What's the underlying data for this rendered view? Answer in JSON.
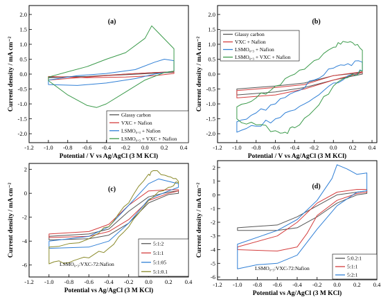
{
  "colors": {
    "black": "#555555",
    "red": "#d43d3d",
    "blue": "#2f7fd6",
    "green": "#3a9a4a",
    "olive": "#8a8a2a",
    "cyan": "#22b3c9",
    "teal": "#3aa88e"
  },
  "chart_data": [
    {
      "label": "(a)",
      "type": "line",
      "xlabel": "Potential / V vs Ag/AgCl (3 M KCl)",
      "ylabel": "Current density / mA cm⁻²",
      "xlim": [
        -1.2,
        0.45
      ],
      "ylim": [
        -2.3,
        2.3
      ],
      "xticks": [
        "-1.2",
        "-1.0",
        "-0.8",
        "-0.6",
        "-0.4",
        "-0.2",
        "0.0",
        "0.2",
        "0.4"
      ],
      "yticks": [
        "-2.0",
        "-1.5",
        "-1.0",
        "-0.5",
        "0.0",
        "0.5",
        "1.0",
        "1.5",
        "2.0"
      ],
      "legend_position": "bottom-right",
      "series": [
        {
          "name": "Glassy carbon",
          "color": "#555555",
          "upper": [
            [
              -1.0,
              -0.12
            ],
            [
              -0.6,
              -0.08
            ],
            [
              -0.2,
              0.0
            ],
            [
              0.1,
              0.05
            ],
            [
              0.3,
              0.08
            ]
          ],
          "lower": [
            [
              -1.0,
              -0.1
            ],
            [
              -0.6,
              -0.08
            ],
            [
              -0.2,
              -0.02
            ],
            [
              0.1,
              0.03
            ],
            [
              0.3,
              0.06
            ]
          ]
        },
        {
          "name": "VXC + Nafion",
          "color": "#d43d3d",
          "upper": [
            [
              -1.0,
              -0.2
            ],
            [
              -0.6,
              -0.1
            ],
            [
              -0.2,
              0.0
            ],
            [
              0.1,
              0.05
            ],
            [
              0.3,
              0.08
            ]
          ],
          "lower": [
            [
              -1.0,
              -0.08
            ],
            [
              -0.6,
              -0.12
            ],
            [
              -0.2,
              -0.1
            ],
            [
              0.1,
              -0.05
            ],
            [
              0.3,
              0.02
            ]
          ]
        },
        {
          "name": "LSMO₀.₃ + Nafion",
          "color": "#2f7fd6",
          "upper": [
            [
              -1.0,
              -0.2
            ],
            [
              -0.7,
              -0.05
            ],
            [
              -0.4,
              0.02
            ],
            [
              -0.1,
              0.15
            ],
            [
              0.1,
              0.4
            ],
            [
              0.2,
              0.5
            ],
            [
              0.3,
              0.45
            ]
          ],
          "lower": [
            [
              -1.0,
              -0.35
            ],
            [
              -0.7,
              -0.38
            ],
            [
              -0.4,
              -0.3
            ],
            [
              -0.1,
              -0.15
            ],
            [
              0.1,
              0.0
            ],
            [
              0.2,
              0.05
            ],
            [
              0.3,
              0.1
            ]
          ]
        },
        {
          "name": "LSMO₀.₃ + VXC + Nafion",
          "color": "#3a9a4a",
          "upper": [
            [
              -1.0,
              -0.1
            ],
            [
              -0.8,
              0.08
            ],
            [
              -0.6,
              0.25
            ],
            [
              -0.4,
              0.5
            ],
            [
              -0.2,
              0.72
            ],
            [
              0.0,
              1.2
            ],
            [
              0.07,
              1.62
            ],
            [
              0.15,
              1.35
            ],
            [
              0.3,
              0.85
            ]
          ],
          "lower": [
            [
              -1.0,
              -0.22
            ],
            [
              -0.8,
              -0.7
            ],
            [
              -0.6,
              -1.05
            ],
            [
              -0.5,
              -1.12
            ],
            [
              -0.4,
              -1.0
            ],
            [
              -0.2,
              -0.6
            ],
            [
              0.0,
              -0.2
            ],
            [
              0.2,
              0.05
            ],
            [
              0.3,
              0.1
            ]
          ]
        }
      ]
    },
    {
      "label": "(b)",
      "type": "line",
      "xlabel": "Potential / V vs Ag/AgCl (3 M KCl)",
      "ylabel": "Current density / mA cm⁻²",
      "xlim": [
        -1.2,
        0.45
      ],
      "ylim": [
        -2.3,
        2.3
      ],
      "xticks": [
        "-1.2",
        "-1.0",
        "-0.8",
        "-0.6",
        "-0.4",
        "-0.2",
        "0.0",
        "0.2",
        "0.4"
      ],
      "yticks": [
        "-2.0",
        "-1.5",
        "-1.0",
        "-0.5",
        "0.0",
        "0.5",
        "1.0",
        "1.5",
        "2.0"
      ],
      "legend_position": "top-left",
      "series": [
        {
          "name": "Glassy carbon",
          "color": "#555555",
          "upper": [
            [
              -1.0,
              -0.5
            ],
            [
              -0.6,
              -0.4
            ],
            [
              -0.3,
              -0.3
            ],
            [
              0.0,
              -0.05
            ],
            [
              0.3,
              0.05
            ]
          ],
          "lower": [
            [
              -1.0,
              -0.7
            ],
            [
              -0.6,
              -0.6
            ],
            [
              -0.3,
              -0.45
            ],
            [
              0.0,
              -0.2
            ],
            [
              0.3,
              0.0
            ]
          ]
        },
        {
          "name": "VXC + Nafion",
          "color": "#d43d3d",
          "upper": [
            [
              -1.0,
              -0.55
            ],
            [
              -0.6,
              -0.45
            ],
            [
              -0.3,
              -0.35
            ],
            [
              0.0,
              -0.05
            ],
            [
              0.3,
              0.08
            ]
          ],
          "lower": [
            [
              -1.0,
              -0.8
            ],
            [
              -0.6,
              -0.7
            ],
            [
              -0.3,
              -0.5
            ],
            [
              0.0,
              -0.2
            ],
            [
              0.3,
              0.05
            ]
          ]
        },
        {
          "name": "LSMO₀.₃ + Nafion",
          "color": "#2f7fd6",
          "upper": [
            [
              -1.0,
              -1.6
            ],
            [
              -0.8,
              -1.3
            ],
            [
              -0.6,
              -1.0
            ],
            [
              -0.4,
              -0.6
            ],
            [
              -0.2,
              -0.2
            ],
            [
              0.0,
              0.2
            ],
            [
              0.15,
              0.35
            ],
            [
              0.3,
              0.4
            ]
          ],
          "lower": [
            [
              -1.0,
              -1.95
            ],
            [
              -0.8,
              -1.75
            ],
            [
              -0.6,
              -1.5
            ],
            [
              -0.4,
              -1.2
            ],
            [
              -0.2,
              -0.8
            ],
            [
              0.0,
              -0.3
            ],
            [
              0.2,
              0.0
            ],
            [
              0.3,
              0.1
            ]
          ]
        },
        {
          "name": "LSMO₀.₃ + VXC + Nafion",
          "color": "#3a9a4a",
          "upper": [
            [
              -1.0,
              -1.1
            ],
            [
              -0.8,
              -0.8
            ],
            [
              -0.6,
              -0.4
            ],
            [
              -0.4,
              0.0
            ],
            [
              -0.2,
              0.45
            ],
            [
              0.0,
              0.9
            ],
            [
              0.1,
              1.1
            ],
            [
              0.2,
              1.05
            ],
            [
              0.3,
              0.8
            ]
          ],
          "lower": [
            [
              -1.0,
              -1.5
            ],
            [
              -0.8,
              -1.7
            ],
            [
              -0.6,
              -1.9
            ],
            [
              -0.5,
              -1.95
            ],
            [
              -0.4,
              -1.8
            ],
            [
              -0.2,
              -1.2
            ],
            [
              0.0,
              -0.4
            ],
            [
              0.2,
              0.0
            ],
            [
              0.3,
              0.1
            ]
          ]
        }
      ]
    },
    {
      "label": "(c)",
      "type": "line",
      "xlabel": "Potential vs Ag/AgCl (3 M KCl)",
      "ylabel": "Current density / mA cm⁻²",
      "xlim": [
        -1.2,
        0.4
      ],
      "ylim": [
        -7,
        2.5
      ],
      "xticks": [
        "-1.2",
        "-1.0",
        "-0.8",
        "-0.6",
        "-0.4",
        "-0.2",
        "0.0",
        "0.2",
        "0.4"
      ],
      "yticks": [
        "-6",
        "-4",
        "-2",
        "0",
        "2"
      ],
      "legend_position": "bottom-right",
      "annotation": "LSMO₀.₃:VXC-72:Nafion",
      "series": [
        {
          "name": "5:1:2",
          "color": "#555555",
          "upper": [
            [
              -1.0,
              -3.6
            ],
            [
              -0.6,
              -3.4
            ],
            [
              -0.4,
              -3.0
            ],
            [
              -0.2,
              -1.5
            ],
            [
              0.0,
              -0.3
            ],
            [
              0.2,
              0.1
            ],
            [
              0.3,
              0.2
            ]
          ],
          "lower": [
            [
              -1.0,
              -3.9
            ],
            [
              -0.6,
              -3.8
            ],
            [
              -0.4,
              -3.5
            ],
            [
              -0.2,
              -2.5
            ],
            [
              0.0,
              -0.8
            ],
            [
              0.2,
              -0.1
            ],
            [
              0.3,
              0.0
            ]
          ]
        },
        {
          "name": "5:1:1",
          "color": "#d43d3d",
          "upper": [
            [
              -1.0,
              -3.4
            ],
            [
              -0.6,
              -3.2
            ],
            [
              -0.4,
              -2.6
            ],
            [
              -0.2,
              -1.0
            ],
            [
              0.0,
              0.2
            ],
            [
              0.2,
              0.3
            ],
            [
              0.3,
              0.3
            ]
          ],
          "lower": [
            [
              -1.0,
              -3.7
            ],
            [
              -0.6,
              -3.6
            ],
            [
              -0.4,
              -3.2
            ],
            [
              -0.2,
              -2.2
            ],
            [
              0.0,
              -0.6
            ],
            [
              0.2,
              0.0
            ],
            [
              0.3,
              0.2
            ]
          ]
        },
        {
          "name": "5:1:05",
          "color": "#2f7fd6",
          "upper": [
            [
              -1.0,
              -4.0
            ],
            [
              -0.6,
              -3.6
            ],
            [
              -0.4,
              -2.8
            ],
            [
              -0.2,
              -1.0
            ],
            [
              0.0,
              0.8
            ],
            [
              0.1,
              1.2
            ],
            [
              0.2,
              1.0
            ],
            [
              0.3,
              0.8
            ]
          ],
          "lower": [
            [
              -1.0,
              -4.6
            ],
            [
              -0.6,
              -4.5
            ],
            [
              -0.4,
              -4.0
            ],
            [
              -0.2,
              -2.5
            ],
            [
              0.0,
              -0.5
            ],
            [
              0.2,
              0.2
            ],
            [
              0.3,
              0.5
            ]
          ]
        },
        {
          "name": "5:1:0.1",
          "color": "#8a8a2a",
          "upper": [
            [
              -1.0,
              -4.5
            ],
            [
              -0.6,
              -3.8
            ],
            [
              -0.4,
              -2.8
            ],
            [
              -0.2,
              -0.8
            ],
            [
              0.0,
              1.6
            ],
            [
              0.05,
              1.9
            ],
            [
              0.2,
              1.4
            ],
            [
              0.3,
              1.0
            ]
          ],
          "lower": [
            [
              -1.0,
              -5.9
            ],
            [
              -0.8,
              -5.8
            ],
            [
              -0.6,
              -5.4
            ],
            [
              -0.4,
              -4.6
            ],
            [
              -0.2,
              -2.8
            ],
            [
              0.0,
              -0.6
            ],
            [
              0.2,
              0.5
            ],
            [
              0.3,
              0.9
            ]
          ]
        }
      ]
    },
    {
      "label": "(d)",
      "type": "line",
      "xlabel": "Potential vs Ag/AgCl (3 M KCl)",
      "ylabel": "Current density / mA cm⁻²",
      "xlim": [
        -1.2,
        0.4
      ],
      "ylim": [
        -6.2,
        2.5
      ],
      "xticks": [
        "-1.2",
        "-1.0",
        "-0.8",
        "-0.6",
        "-0.4",
        "-0.2",
        "0.0",
        "0.2",
        "0.4"
      ],
      "yticks": [
        "-6",
        "-5",
        "-4",
        "-3",
        "-2",
        "-1",
        "0",
        "1",
        "2"
      ],
      "legend_position": "bottom-right",
      "annotation": "LSMO₀.₃:VXC-72:Nafion",
      "series": [
        {
          "name": "5:0.2:1",
          "color": "#555555",
          "upper": [
            [
              -1.0,
              -2.4
            ],
            [
              -0.6,
              -2.2
            ],
            [
              -0.4,
              -1.6
            ],
            [
              -0.2,
              -0.8
            ],
            [
              0.0,
              0.0
            ],
            [
              0.2,
              0.2
            ],
            [
              0.3,
              0.3
            ]
          ],
          "lower": [
            [
              -1.0,
              -2.6
            ],
            [
              -0.6,
              -2.6
            ],
            [
              -0.4,
              -2.4
            ],
            [
              -0.2,
              -1.6
            ],
            [
              0.0,
              -0.6
            ],
            [
              0.2,
              0.0
            ],
            [
              0.3,
              0.1
            ]
          ]
        },
        {
          "name": "5:1:1",
          "color": "#d43d3d",
          "upper": [
            [
              -1.0,
              -3.8
            ],
            [
              -0.6,
              -3.0
            ],
            [
              -0.4,
              -2.0
            ],
            [
              -0.2,
              -0.6
            ],
            [
              0.0,
              0.2
            ],
            [
              0.2,
              0.4
            ],
            [
              0.3,
              0.4
            ]
          ],
          "lower": [
            [
              -1.0,
              -4.0
            ],
            [
              -0.6,
              -4.1
            ],
            [
              -0.4,
              -3.8
            ],
            [
              -0.3,
              -2.8
            ],
            [
              -0.2,
              -1.5
            ],
            [
              0.0,
              -0.4
            ],
            [
              0.2,
              0.1
            ],
            [
              0.3,
              0.2
            ]
          ]
        },
        {
          "name": "5:2:1",
          "color": "#2f7fd6",
          "upper": [
            [
              -1.0,
              -3.6
            ],
            [
              -0.6,
              -2.6
            ],
            [
              -0.4,
              -1.8
            ],
            [
              -0.2,
              -0.4
            ],
            [
              -0.05,
              1.2
            ],
            [
              0.0,
              2.2
            ],
            [
              0.1,
              1.9
            ],
            [
              0.2,
              1.5
            ],
            [
              0.3,
              1.6
            ]
          ],
          "lower": [
            [
              -1.0,
              -5.4
            ],
            [
              -0.8,
              -5.1
            ],
            [
              -0.6,
              -5.0
            ],
            [
              -0.4,
              -4.4
            ],
            [
              -0.2,
              -2.5
            ],
            [
              0.0,
              -0.8
            ],
            [
              0.2,
              0.2
            ],
            [
              0.3,
              0.3
            ]
          ]
        }
      ]
    }
  ]
}
